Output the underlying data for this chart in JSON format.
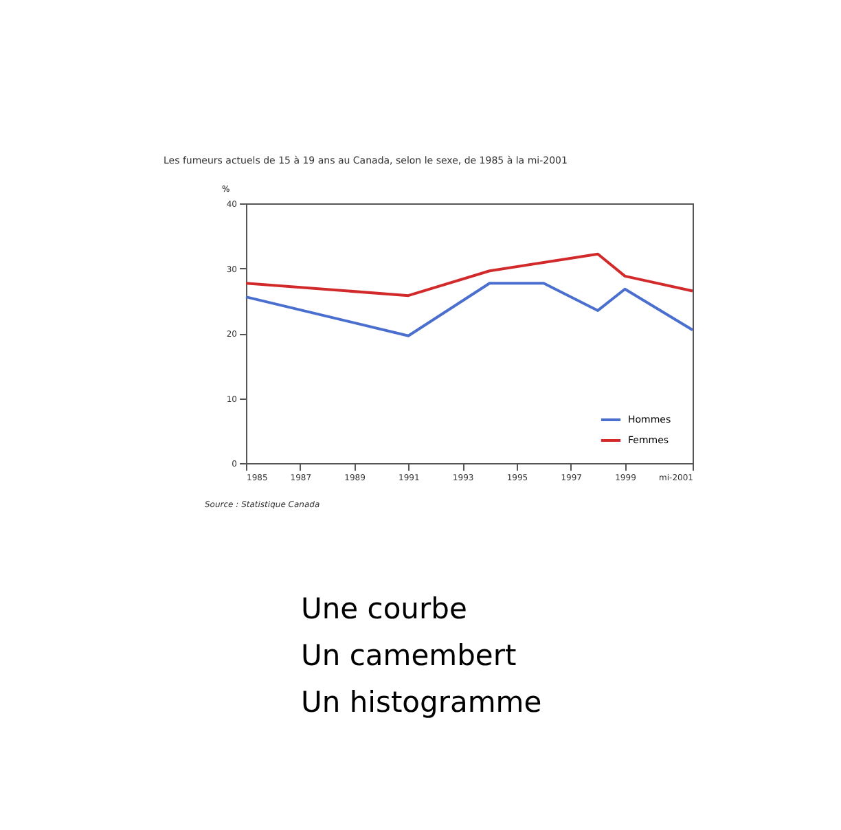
{
  "chart_data": {
    "type": "line",
    "title": "Les fumeurs actuels de 15 à 19 ans au Canada, selon le sexe, de 1985 à la mi-2001",
    "ylabel": "%",
    "x": [
      1985,
      1991,
      1994,
      1996,
      1998,
      1999,
      2001.5
    ],
    "series": [
      {
        "name": "Hommes",
        "color": "#4a6fcf",
        "values": [
          25.6,
          19.6,
          27.7,
          27.7,
          23.5,
          26.8,
          20.5
        ]
      },
      {
        "name": "Femmes",
        "color": "#d22a2a",
        "values": [
          27.7,
          25.8,
          29.6,
          30.9,
          32.2,
          28.8,
          26.5
        ]
      }
    ],
    "xlim": [
      1985,
      2001.5
    ],
    "xticks": [
      1985,
      1987,
      1989,
      1991,
      1993,
      1995,
      1997,
      1999,
      {
        "value": 2001.5,
        "label": "mi-2001"
      }
    ],
    "ylim": [
      0,
      40
    ],
    "yticks": [
      0,
      10,
      20,
      30,
      40
    ],
    "grid": false,
    "legend": "bottom right",
    "marker": "none",
    "line_style": "solid",
    "annotations": [
      "Source : Statistique Canada",
      "Une courbe",
      "Un camembert",
      "Un histogramme"
    ]
  }
}
